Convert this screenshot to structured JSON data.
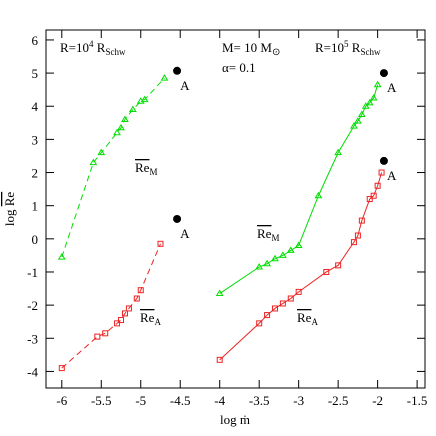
{
  "chart_data": {
    "type": "line",
    "x_label": "log ṁ",
    "y_label": [
      "log ",
      "Re"
    ],
    "xlim": [
      -6.2,
      -1.4
    ],
    "ylim": [
      -4.5,
      6.3
    ],
    "xticks": [
      -6,
      -5.5,
      -5,
      -4.5,
      -4,
      -3.5,
      -3,
      -2.5,
      -2,
      -1.5
    ],
    "yticks": [
      -4,
      -3,
      -2,
      -1,
      0,
      1,
      2,
      3,
      4,
      5,
      6
    ],
    "series": [
      {
        "color": "#00dd00",
        "linestyle": "dashed",
        "marker": "triangle",
        "x": [
          -6.0,
          -5.6,
          -5.5,
          -5.3,
          -5.25,
          -5.2,
          -5.1,
          -5.0,
          -4.95,
          -4.7
        ],
        "y": [
          -0.55,
          2.3,
          2.6,
          3.2,
          3.35,
          3.6,
          3.9,
          4.15,
          4.2,
          4.85
        ]
      },
      {
        "color": "#ee2222",
        "linestyle": "dashed",
        "marker": "square",
        "x": [
          -6.0,
          -5.55,
          -5.45,
          -5.3,
          -5.25,
          -5.2,
          -5.15,
          -5.05,
          -5.0,
          -4.75
        ],
        "y": [
          -3.9,
          -2.95,
          -2.85,
          -2.55,
          -2.45,
          -2.25,
          -2.1,
          -1.8,
          -1.55,
          -0.15
        ]
      },
      {
        "color": "#00dd00",
        "linestyle": "solid",
        "marker": "triangle",
        "x": [
          -4.0,
          -3.5,
          -3.4,
          -3.3,
          -3.2,
          -3.1,
          -3.0,
          -2.75,
          -2.5,
          -2.3,
          -2.25,
          -2.2,
          -2.15,
          -2.1,
          -2.05,
          -2.0
        ],
        "y": [
          -1.65,
          -0.85,
          -0.75,
          -0.6,
          -0.5,
          -0.35,
          -0.2,
          1.3,
          2.6,
          3.4,
          3.55,
          3.75,
          4.0,
          4.1,
          4.25,
          4.65
        ]
      },
      {
        "color": "#ee2222",
        "linestyle": "solid",
        "marker": "square",
        "x": [
          -4.0,
          -3.5,
          -3.4,
          -3.3,
          -3.2,
          -3.1,
          -3.0,
          -2.65,
          -2.5,
          -2.3,
          -2.25,
          -2.2,
          -2.1,
          -2.05,
          -2.0,
          -1.95
        ],
        "y": [
          -3.65,
          -2.55,
          -2.3,
          -2.1,
          -1.95,
          -1.8,
          -1.6,
          -1.0,
          -0.8,
          -0.1,
          0.1,
          0.55,
          1.2,
          1.3,
          1.6,
          2.0
        ]
      }
    ],
    "points": [
      {
        "x": -4.54,
        "y": 5.07,
        "label": "A"
      },
      {
        "x": -4.54,
        "y": 0.6,
        "label": "A"
      },
      {
        "x": -1.92,
        "y": 5.0,
        "label": "A"
      },
      {
        "x": -1.92,
        "y": 2.35,
        "label": "A"
      }
    ],
    "point_color": "#000000",
    "annotations": [
      [
        "R=10",
        "4",
        " R",
        "Schw"
      ],
      [
        "M= 10 M",
        "⊙"
      ],
      [
        "α= 0.1"
      ],
      [
        "R=10",
        "5",
        " R",
        "Schw"
      ],
      [
        "Re",
        "M"
      ],
      [
        "Re",
        "A"
      ],
      [
        "Re",
        "M"
      ],
      [
        "Re",
        "A"
      ]
    ]
  }
}
